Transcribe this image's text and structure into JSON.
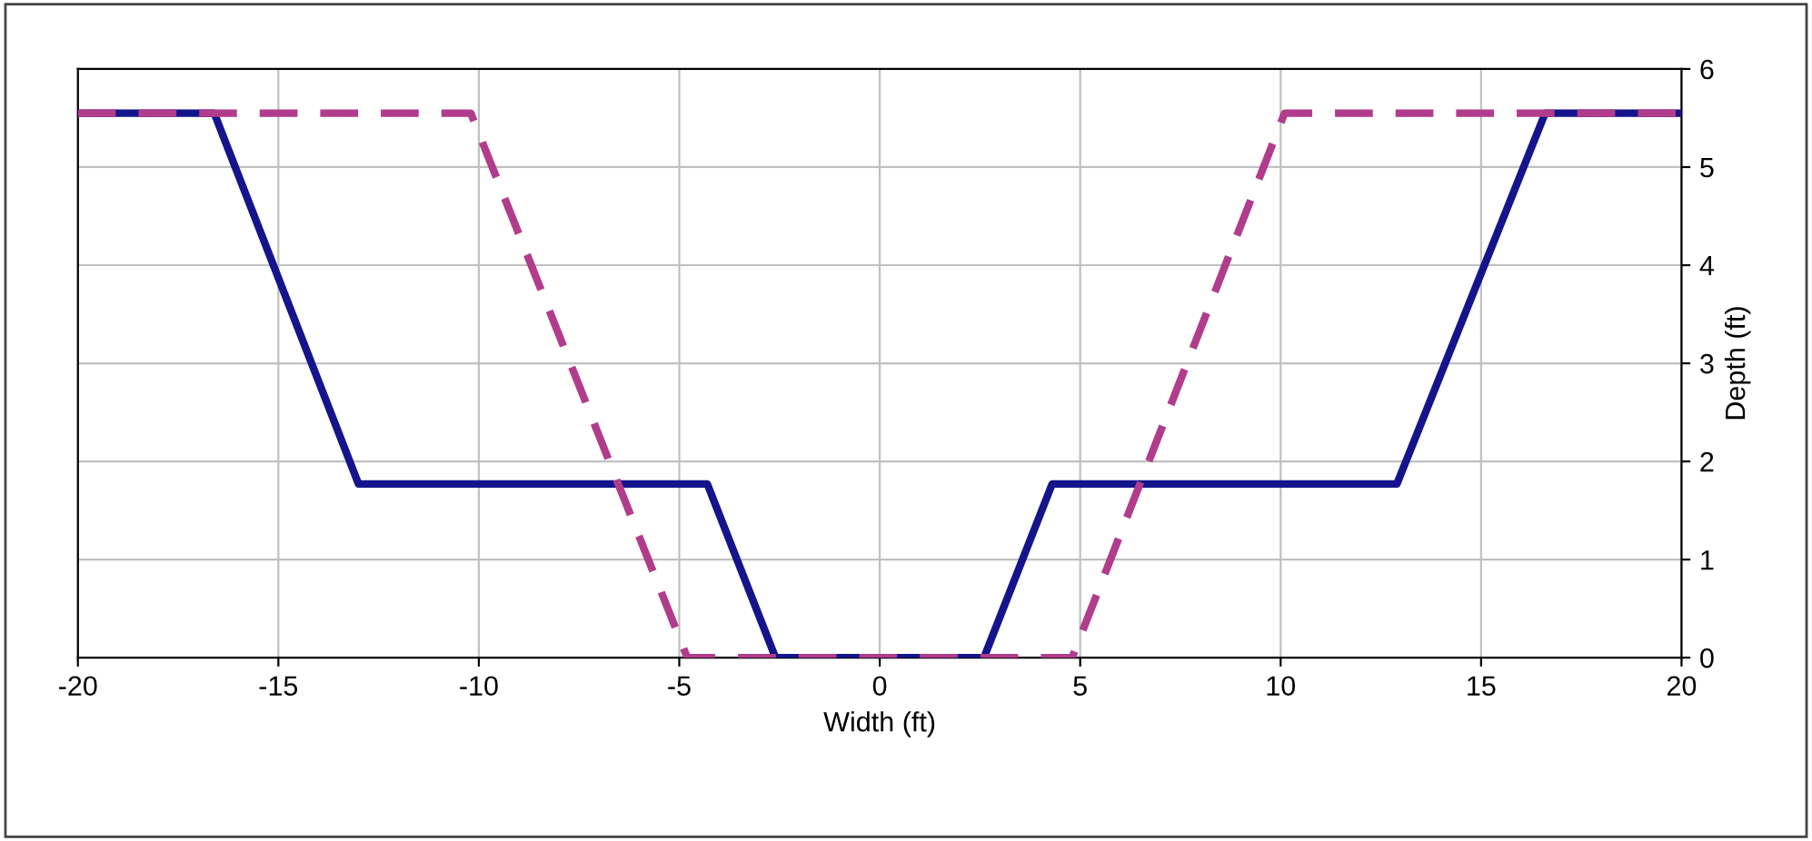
{
  "chart_data": {
    "type": "line",
    "xlabel": "Width (ft)",
    "ylabel": "Depth (ft)",
    "xlim": [
      -20,
      20
    ],
    "xticks": [
      -20,
      -15,
      -10,
      -5,
      0,
      5,
      10,
      15,
      20
    ],
    "ylim": [
      0,
      6
    ],
    "yticks": [
      0,
      1,
      2,
      3,
      4,
      5,
      6
    ],
    "grid": true,
    "legend": false,
    "marker": "none",
    "series": [
      {
        "color": "#14148c",
        "line_style": "solid",
        "x": [
          -20,
          -16.6,
          -13,
          -4.3,
          -2.6,
          2.6,
          4.3,
          12.9,
          16.6,
          20
        ],
        "values": [
          5.55,
          5.55,
          1.77,
          1.77,
          0,
          0,
          1.77,
          1.77,
          5.55,
          5.55
        ]
      },
      {
        "color": "#b23c8c",
        "line_style": "dashed",
        "x": [
          -20,
          -10.2,
          -4.8,
          4.8,
          10.1,
          20
        ],
        "values": [
          5.55,
          5.55,
          0,
          0,
          5.55,
          5.55
        ]
      }
    ]
  }
}
